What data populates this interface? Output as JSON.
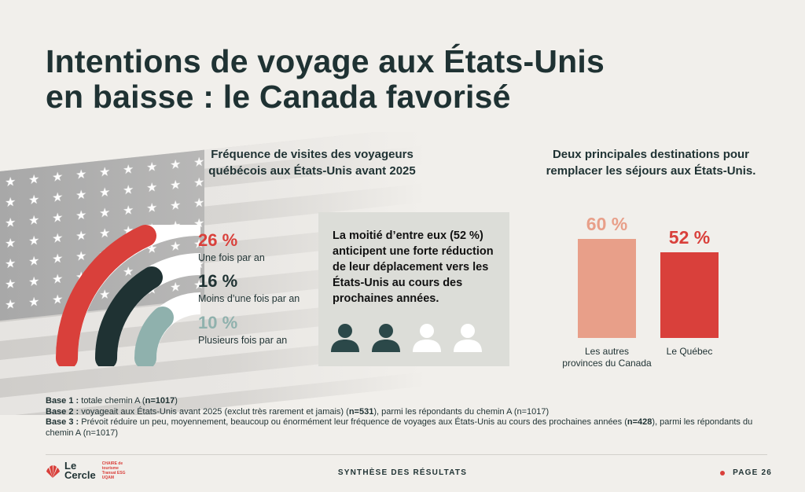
{
  "title_line1": "Intentions de voyage aux États-Unis",
  "title_line2": "en baisse : le Canada favorisé",
  "left_section": {
    "title_line1": "Fréquence de visites des voyageurs",
    "title_line2": "québécois aux États-Unis avant 2025",
    "stats": [
      {
        "pct": "26 %",
        "label": "Une fois par an",
        "color": "#d9403b"
      },
      {
        "pct": "16 %",
        "label": "Moins d’une fois par an",
        "color": "#1f3233"
      },
      {
        "pct": "10 %",
        "label": "Plusieurs fois par an",
        "color": "#8fb1ad"
      }
    ],
    "callout": "La moitié d’entre eux (52 %) anticipent une forte réduction de leur déplacement vers les États-Unis au cours des prochaines années.",
    "people_icons": [
      "person-icon-filled",
      "person-icon-filled",
      "person-icon-empty",
      "person-icon-empty"
    ]
  },
  "right_section": {
    "title_line1": "Deux principales destinations pour",
    "title_line2": "remplacer les séjours aux États-Unis."
  },
  "chart_data": {
    "type": "bar",
    "categories": [
      "Les autres provinces du Canada",
      "Le Québec"
    ],
    "category_lines": [
      [
        "Les autres",
        "provinces du Canada"
      ],
      [
        "Le Québec"
      ]
    ],
    "values": [
      60,
      52
    ],
    "value_labels": [
      "60 %",
      "52 %"
    ],
    "colors": [
      "#e89f89",
      "#d9403b"
    ],
    "ylim": [
      0,
      60
    ]
  },
  "notes": [
    {
      "prefix": "Base 1 :",
      "text": " totale chemin A (",
      "bold": "n=1017",
      "suffix": ")"
    },
    {
      "prefix": "Base 2 :",
      "text": " voyageait aux États-Unis avant 2025 (exclut très rarement et jamais) (",
      "bold": "n=531",
      "suffix": "), parmi les répondants du chemin A (n=1017)"
    },
    {
      "prefix": "Base 3 :",
      "text": " Prévoit réduire un peu, moyennement, beaucoup ou énormément leur fréquence de voyages aux États-Unis au cours des prochaines années (",
      "bold": "n=428",
      "suffix": "), parmi les répondants du chemin A (n=1017)"
    }
  ],
  "footer": {
    "logo_line1": "Le",
    "logo_line2": "Cercle",
    "logo_sub": "CHAIRE de tourisme Transat ESG UQAM",
    "center": "SYNTHÈSE DES RÉSULTATS",
    "page": "PAGE 26"
  }
}
